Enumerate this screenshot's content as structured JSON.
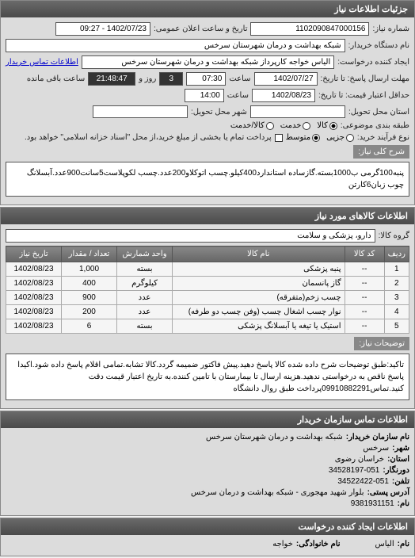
{
  "panel1": {
    "title": "جزئیات اطلاعات نیاز",
    "req_no_label": "شماره نیاز:",
    "req_no": "1102090847000156",
    "announce_label": "تاریخ و ساعت اعلان عمومی:",
    "announce_val": "1402/07/23 - 09:27",
    "buyer_org_label": "نام دستگاه خریدار:",
    "buyer_org": "شبکه بهداشت و درمان شهرستان سرخس",
    "creator_label": "ایجاد کننده درخواست:",
    "creator": "الیاس خواجه کارپرداز شبکه بهداشت و درمان شهرستان سرخس",
    "contact_link": "اطلاعات تماس خریدار",
    "deadline_label": "مهلت ارسال پاسخ: تا تاریخ:",
    "deadline_date": "1402/07/27",
    "time_label": "ساعت",
    "deadline_time": "07:30",
    "remain_days": "3",
    "remain_days_label": "روز و",
    "remain_time": "21:48:47",
    "remain_label": "ساعت باقی مانده",
    "valid_label": "حداقل اعتبار قیمت: تا تاریخ:",
    "valid_date": "1402/08/23",
    "valid_time": "14:00",
    "delivery_state_label": "استان محل تحویل:",
    "delivery_city_label": "شهر محل تحویل:",
    "vat_label": "طبقه بندی موضوعی:",
    "vat_opts": {
      "goods": "کالا",
      "service": "خدمت",
      "both": "کالا/خدمت"
    },
    "process_label": "نوع فرآیند خرید:",
    "process_opts": {
      "small": "جزیی",
      "medium": "متوسط"
    },
    "process_note": "پرداخت تمام یا بخشی از مبلغ خرید،از محل \"اسناد خزانه اسلامی\" خواهد بود.",
    "desc_label": "شرح کلی نیاز:",
    "desc": "پنبه100گرمی ب1000بسته.گازساده استاندارد400کیلو.چسب اتوکلاو200عدد.چسب لکوپلاست5سانت900عدد.آبسلانگ چوب زبان6کارتن"
  },
  "panel2": {
    "title": "اطلاعات کالاهای مورد نیاز",
    "group_label": "گروه کالا:",
    "group_val": "دارو، پزشکی و سلامت",
    "cols": {
      "row": "ردیف",
      "code": "کد کالا",
      "name": "نام کالا",
      "unit": "واحد شمارش",
      "qty": "تعداد / مقدار",
      "date": "تاریخ نیاز"
    },
    "rows": [
      {
        "i": "1",
        "code": "--",
        "name": "پنبه پزشکی",
        "unit": "بسته",
        "qty": "1,000",
        "date": "1402/08/23"
      },
      {
        "i": "2",
        "code": "--",
        "name": "گاز پانسمان",
        "unit": "کیلوگرم",
        "qty": "400",
        "date": "1402/08/23"
      },
      {
        "i": "3",
        "code": "--",
        "name": "چسب زخم(متفرقه)",
        "unit": "عدد",
        "qty": "900",
        "date": "1402/08/23"
      },
      {
        "i": "4",
        "code": "--",
        "name": "نوار چسب اشغال چسب (وفن چسب دو طرفه)",
        "unit": "عدد",
        "qty": "200",
        "date": "1402/08/23"
      },
      {
        "i": "5",
        "code": "--",
        "name": "استیک یا تیغه یا آبسلانگ پزشکی",
        "unit": "بسته",
        "qty": "6",
        "date": "1402/08/23"
      }
    ],
    "notes_label": "توضیحات نیاز:",
    "notes": "تاکید:طبق توضیحات شرح داده شده کالا پاسخ دهید.پیش فاکتور ضمیمه گردد.کالا تشابه.تمامی اقلام پاسخ داده شود.اکیدا پاسخ ناقص به درخواستی ندهید.هزینه ارسال تا بیمارستان با تامین کننده.به تاریخ اعتبار قیمت دقت کنید.تماس09910882291پرداخت طبق روال دانشگاه"
  },
  "panel3": {
    "title": "اطلاعات تماس سازمان خریدار",
    "org_label": "نام سازمان خریدار:",
    "org": "شبکه بهداشت و درمان شهرستان سرخس",
    "city_label": "شهر:",
    "city": "سرخس",
    "province_label": "استان:",
    "province": "خراسان رضوی",
    "fax_label": "دورنگار:",
    "fax": "34528197-051",
    "tel_label": "تلفن:",
    "tel": "34522422-051",
    "addr_label": "آدرس پستی:",
    "addr": "بلوار شهید مهجوری - شبکه بهداشت و درمان سرخس",
    "contact_label": "نام:",
    "contact": "9381931151"
  },
  "panel4": {
    "title": "اطلاعات ایجاد کننده درخواست",
    "name_label": "نام:",
    "name": "الیاس",
    "surname_label": "نام خانوادگی:",
    "surname": "خواجه"
  }
}
